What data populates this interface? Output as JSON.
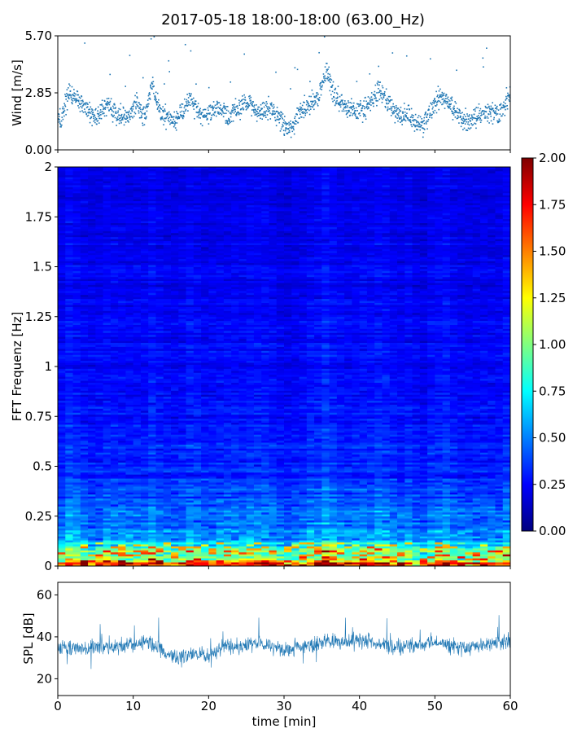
{
  "figure": {
    "title": "2017-05-18 18:00-18:00 (63.00_Hz)"
  },
  "chart_data": [
    {
      "id": "wind",
      "type": "scatter",
      "ylabel": "Wind [m/s]",
      "xlim": [
        0,
        60
      ],
      "ylim": [
        0,
        5.7
      ],
      "yticks": [
        0.0,
        2.85,
        5.7
      ],
      "ytick_labels": [
        "0.00",
        "2.85",
        "5.70"
      ],
      "color": "#1f77b4",
      "series": [
        {
          "x": [
            0.5,
            1.5,
            2.5,
            3.5,
            4.5,
            5.5,
            6.5,
            7.5,
            8.5,
            9.5,
            10.5,
            11.5,
            12.5,
            13.5,
            14.5,
            15.5,
            16.5,
            17.5,
            18.5,
            19.5,
            20.5,
            21.5,
            22.5,
            23.5,
            24.5,
            25.5,
            26.5,
            27.5,
            28.5,
            29.5,
            30.5,
            31.5,
            32.5,
            33.5,
            34.5,
            35.5,
            36.5,
            37.5,
            38.5,
            39.5,
            40.5,
            41.5,
            42.5,
            43.5,
            44.5,
            45.5,
            46.5,
            47.5,
            48.5,
            49.5,
            50.5,
            51.5,
            52.5,
            53.5,
            54.5,
            55.5,
            56.5,
            57.5,
            58.5,
            59.5
          ],
          "y": [
            1.5,
            2.9,
            2.6,
            2.2,
            1.6,
            1.8,
            2.3,
            1.9,
            1.6,
            1.8,
            2.4,
            1.6,
            3.2,
            2.0,
            1.6,
            1.5,
            1.8,
            2.6,
            1.9,
            1.7,
            2.0,
            2.1,
            1.7,
            2.0,
            2.2,
            2.4,
            1.8,
            2.1,
            2.0,
            1.6,
            1.0,
            1.4,
            2.0,
            2.3,
            2.6,
            4.0,
            2.8,
            2.4,
            2.0,
            2.1,
            2.0,
            2.3,
            3.0,
            2.5,
            2.0,
            1.7,
            1.9,
            1.4,
            1.3,
            2.0,
            2.6,
            2.5,
            2.0,
            1.6,
            1.4,
            1.6,
            1.8,
            1.9,
            1.7,
            2.6
          ]
        }
      ]
    },
    {
      "id": "spectrogram",
      "type": "heatmap",
      "ylabel": "FFT Frequenz [Hz]",
      "xlim": [
        0,
        60
      ],
      "ylim": [
        0,
        2
      ],
      "yticks": [
        0,
        0.25,
        0.5,
        0.75,
        1,
        1.25,
        1.5,
        1.75,
        2
      ],
      "ytick_labels": [
        "0",
        "0.25",
        "0.5",
        "0.75",
        "1",
        "1.25",
        "1.5",
        "1.75",
        "2"
      ],
      "colormap": "jet",
      "clim": [
        0.0,
        2.0
      ],
      "colorbar_ticks": [
        "0.00",
        "0.25",
        "0.50",
        "0.75",
        "1.00",
        "1.25",
        "1.50",
        "1.75",
        "2.00"
      ],
      "frequency_bins": [
        0.0,
        0.05,
        0.1,
        0.2,
        0.5,
        1.0,
        1.5,
        2.0
      ],
      "mean_level": [
        1.65,
        1.15,
        0.75,
        0.5,
        0.33,
        0.27,
        0.24,
        0.22
      ]
    },
    {
      "id": "spl",
      "type": "line",
      "ylabel": "SPL [dB]",
      "xlabel": "time [min]",
      "xlim": [
        0,
        60
      ],
      "ylim": [
        12,
        66
      ],
      "xticks": [
        0,
        10,
        20,
        30,
        40,
        50,
        60
      ],
      "xtick_labels": [
        "0",
        "10",
        "20",
        "30",
        "40",
        "50",
        "60"
      ],
      "yticks": [
        20,
        40,
        60
      ],
      "ytick_labels": [
        "20",
        "40",
        "60"
      ],
      "color": "#1f77b4",
      "series": [
        {
          "x": [
            0,
            2,
            4,
            6,
            8,
            10,
            12,
            14,
            16,
            18,
            20,
            22,
            24,
            26,
            28,
            30,
            32,
            34,
            36,
            38,
            40,
            42,
            44,
            46,
            48,
            50,
            52,
            54,
            56,
            58,
            60
          ],
          "y": [
            34,
            35,
            34,
            36,
            35,
            37,
            38,
            33,
            30,
            32,
            31,
            36,
            35,
            37,
            36,
            33,
            35,
            36,
            38,
            37,
            39,
            37,
            36,
            35,
            36,
            38,
            36,
            35,
            36,
            37,
            38
          ]
        }
      ]
    }
  ]
}
